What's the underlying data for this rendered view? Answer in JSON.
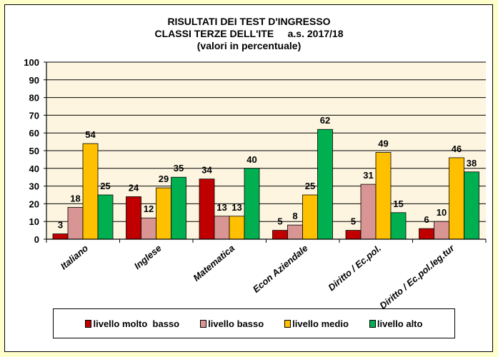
{
  "chart_data": {
    "type": "bar",
    "title": [
      "RISULTATI DEI TEST D'INGRESSO",
      "CLASSI TERZE DELL'ITE     a.s. 2017/18",
      "(valori in percentuale)"
    ],
    "categories": [
      "Italiano",
      "Inglese",
      "Matematica",
      "Econ Aziendale",
      "Diritto / Ec.pol.",
      "Diritto / Ec.pol.leg.tur"
    ],
    "series": [
      {
        "name": "livello molto  basso",
        "color": "#C00000",
        "values": [
          3,
          24,
          34,
          5,
          5,
          6
        ]
      },
      {
        "name": "livello basso",
        "color": "#D99594",
        "values": [
          18,
          12,
          13,
          8,
          31,
          10
        ]
      },
      {
        "name": "livello medio",
        "color": "#FFC000",
        "values": [
          54,
          29,
          13,
          25,
          49,
          46
        ]
      },
      {
        "name": "livello alto",
        "color": "#00B050",
        "values": [
          25,
          35,
          40,
          62,
          15,
          38
        ]
      }
    ],
    "ylim": [
      0,
      100
    ],
    "yticks": [
      0,
      10,
      20,
      30,
      40,
      50,
      60,
      70,
      80,
      90,
      100
    ],
    "grid": true,
    "legend": "bottom",
    "plot_background": "#FDF5E0"
  }
}
